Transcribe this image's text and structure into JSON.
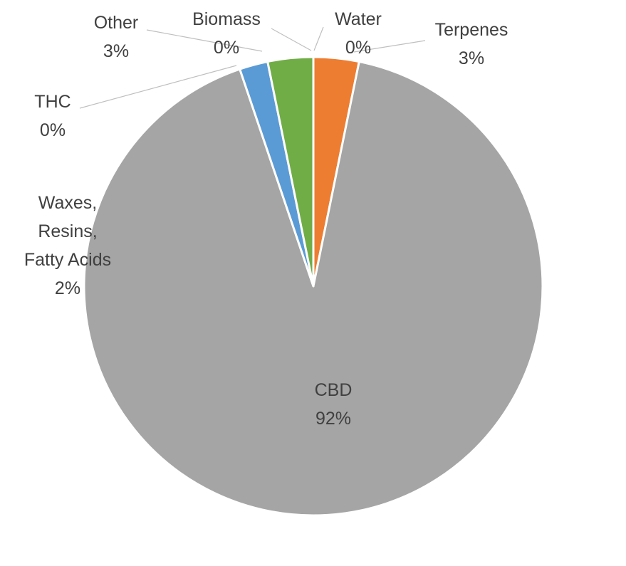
{
  "chart_data": {
    "type": "pie",
    "title": "",
    "start_angle_deg": 0,
    "direction": "clockwise",
    "slices": [
      {
        "label": "Terpenes",
        "value_label": "3%",
        "value": 3.2,
        "color": "#ed7d31"
      },
      {
        "label": "CBD",
        "value_label": "92%",
        "value": 91.6,
        "color": "#a5a5a5"
      },
      {
        "label": "THC",
        "value_label": "0%",
        "value": 0,
        "color": "#ffc000"
      },
      {
        "label": "Waxes, Resins, Fatty Acids",
        "value_label": "2%",
        "value": 2.0,
        "color": "#5b9bd5"
      },
      {
        "label": "Other",
        "value_label": "3%",
        "value": 3.2,
        "color": "#70ad47"
      },
      {
        "label": "Biomass",
        "value_label": "0%",
        "value": 0,
        "color": "#264478"
      },
      {
        "label": "Water",
        "value_label": "0%",
        "value": 0,
        "color": "#4472c4"
      }
    ],
    "label_lines": {
      "Terpenes": [
        "Terpenes"
      ],
      "CBD": [
        "CBD"
      ],
      "THC": [
        "THC"
      ],
      "Waxes, Resins, Fatty Acids": [
        "Waxes,",
        "Resins,",
        "Fatty Acids"
      ],
      "Other": [
        "Other"
      ],
      "Biomass": [
        "Biomass"
      ],
      "Water": [
        "Water"
      ]
    }
  }
}
